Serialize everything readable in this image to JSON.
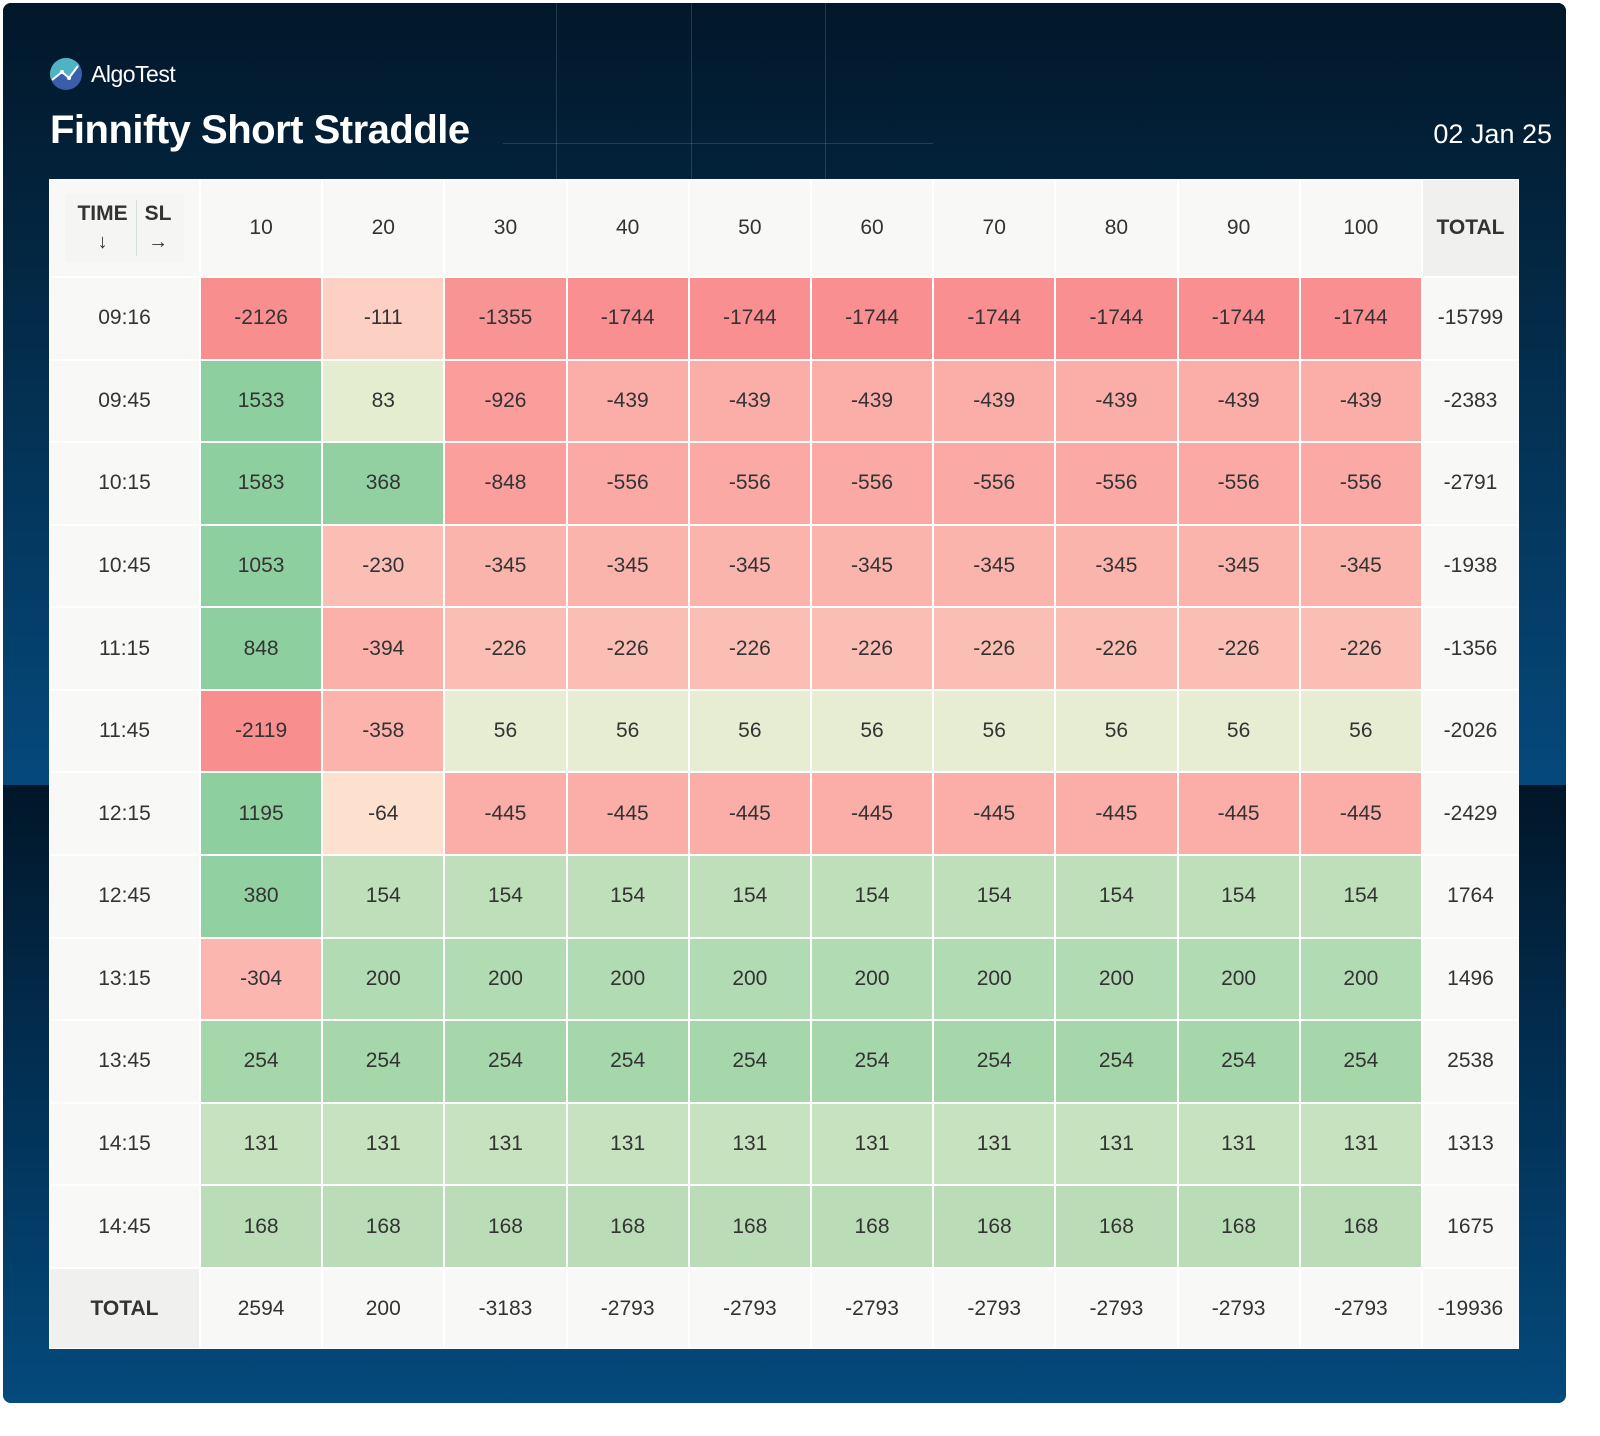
{
  "brand": {
    "name": "AlgoTest",
    "logo_icon": "algotest-logo-icon"
  },
  "title": "Finnifty Short Straddle",
  "date": "02 Jan 25",
  "colors": {
    "panel_dark": "#021a2e",
    "panel_blue": "#054778",
    "loss_strong": "#f98e8f",
    "profit_strong": "#8ecf9f"
  },
  "table": {
    "corner": {
      "row_axis_label": "TIME",
      "row_axis_arrow": "↓",
      "col_axis_label": "SL",
      "col_axis_arrow": "→"
    },
    "total_label": "TOTAL"
  },
  "chart_data": {
    "type": "heatmap",
    "title": "Finnifty Short Straddle",
    "subtitle": "02 Jan 25",
    "xlabel": "SL",
    "ylabel": "TIME",
    "x": [
      "10",
      "20",
      "30",
      "40",
      "50",
      "60",
      "70",
      "80",
      "90",
      "100"
    ],
    "y": [
      "09:16",
      "09:45",
      "10:15",
      "10:45",
      "11:15",
      "11:45",
      "12:15",
      "12:45",
      "13:15",
      "13:45",
      "14:15",
      "14:45"
    ],
    "values": [
      [
        -2126,
        -111,
        -1355,
        -1744,
        -1744,
        -1744,
        -1744,
        -1744,
        -1744,
        -1744
      ],
      [
        1533,
        83,
        -926,
        -439,
        -439,
        -439,
        -439,
        -439,
        -439,
        -439
      ],
      [
        1583,
        368,
        -848,
        -556,
        -556,
        -556,
        -556,
        -556,
        -556,
        -556
      ],
      [
        1053,
        -230,
        -345,
        -345,
        -345,
        -345,
        -345,
        -345,
        -345,
        -345
      ],
      [
        848,
        -394,
        -226,
        -226,
        -226,
        -226,
        -226,
        -226,
        -226,
        -226
      ],
      [
        -2119,
        -358,
        56,
        56,
        56,
        56,
        56,
        56,
        56,
        56
      ],
      [
        1195,
        -64,
        -445,
        -445,
        -445,
        -445,
        -445,
        -445,
        -445,
        -445
      ],
      [
        380,
        154,
        154,
        154,
        154,
        154,
        154,
        154,
        154,
        154
      ],
      [
        -304,
        200,
        200,
        200,
        200,
        200,
        200,
        200,
        200,
        200
      ],
      [
        254,
        254,
        254,
        254,
        254,
        254,
        254,
        254,
        254,
        254
      ],
      [
        131,
        131,
        131,
        131,
        131,
        131,
        131,
        131,
        131,
        131
      ],
      [
        168,
        168,
        168,
        168,
        168,
        168,
        168,
        168,
        168,
        168
      ]
    ],
    "row_totals": [
      -15799,
      -2383,
      -2791,
      -1938,
      -1356,
      -2026,
      -2429,
      1764,
      1496,
      2538,
      1313,
      1675
    ],
    "column_totals": [
      2594,
      200,
      -3183,
      -2793,
      -2793,
      -2793,
      -2793,
      -2793,
      -2793,
      -2793
    ],
    "grand_total": -19936,
    "color_scale": "red (loss) to green (profit)"
  }
}
